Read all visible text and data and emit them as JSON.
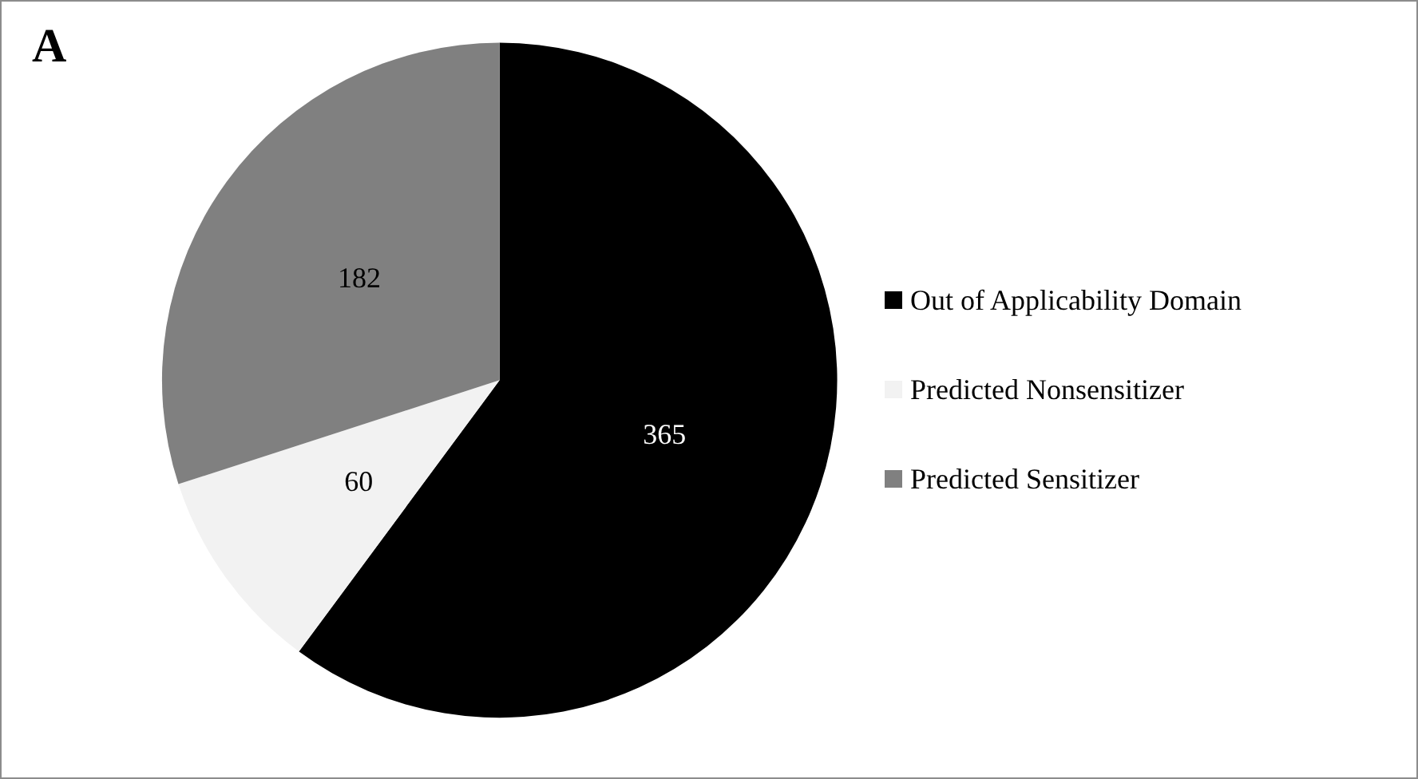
{
  "chart_data": {
    "type": "pie",
    "title": "A",
    "categories": [
      "Out of Applicability Domain",
      "Predicted Nonsensitizer",
      "Predicted Sensitizer"
    ],
    "values": [
      365,
      60,
      182
    ],
    "colors": [
      "#000000",
      "#f2f2f2",
      "#808080"
    ],
    "data_labels": true,
    "legend": "right"
  }
}
